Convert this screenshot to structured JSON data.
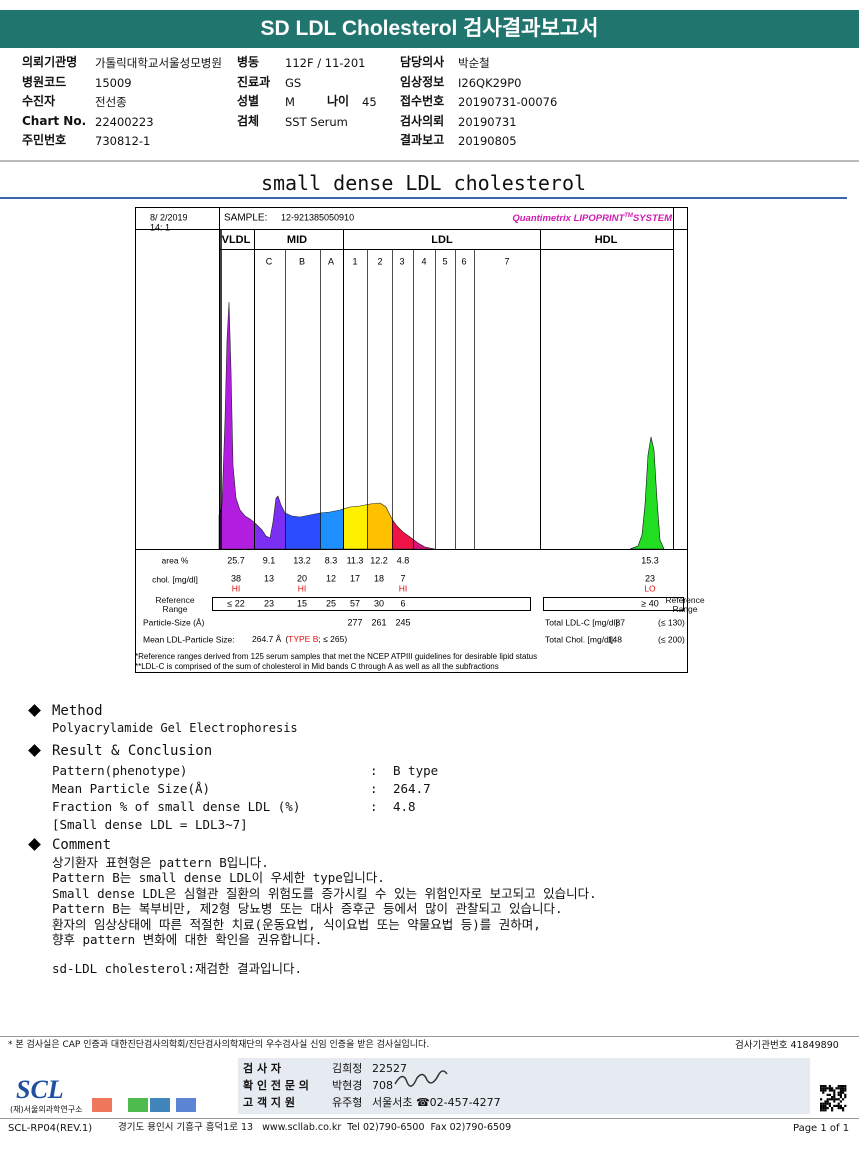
{
  "header": {
    "title": "SD LDL Cholesterol 검사결과보고서"
  },
  "patient_info": {
    "fields": [
      {
        "label": "의뢰기관명",
        "value": "가톨릭대학교서울성모병원"
      },
      {
        "label": "병원코드",
        "value": "15009"
      },
      {
        "label": "수진자",
        "value": "전선종"
      },
      {
        "label": "Chart No.",
        "value": "22400223"
      },
      {
        "label": "주민번호",
        "value": "730812-1"
      },
      {
        "label": "병동",
        "value": "112F / 11-201"
      },
      {
        "label": "진료과",
        "value": "GS"
      },
      {
        "label": "성별",
        "value": "M"
      },
      {
        "label": "나이",
        "value": "45"
      },
      {
        "label": "검체",
        "value": "SST Serum"
      },
      {
        "label": "담당의사",
        "value": "박순철"
      },
      {
        "label": "임상정보",
        "value": "I26QK29P0"
      },
      {
        "label": "접수번호",
        "value": "20190731-00076"
      },
      {
        "label": "검사의뢰",
        "value": "20190731"
      },
      {
        "label": "결과보고",
        "value": "20190805"
      }
    ]
  },
  "report_title": "small dense LDL cholesterol",
  "electrophoresis": {
    "date": "8/ 2/2019",
    "time": "14: 1",
    "sample_label": "SAMPLE:",
    "sample_id": "12-921385050910",
    "brand": "Quantimetrix LIPOPRINT",
    "brand_tm": "TM",
    "brand_suffix": "SYSTEM",
    "bands": [
      "VLDL",
      "MID",
      "LDL",
      "HDL"
    ],
    "subfractions": [
      "C",
      "B",
      "A",
      "1",
      "2",
      "3",
      "4",
      "5",
      "6",
      "7"
    ],
    "area_label": "area %",
    "area": [
      25.7,
      9.1,
      13.2,
      8.3,
      11.3,
      12.2,
      4.8
    ],
    "hdl_area": 15.3,
    "chol_label": "chol. [mg/dl]",
    "chol": [
      38,
      13,
      20,
      12,
      17,
      18,
      7
    ],
    "chol_flags": [
      "HI",
      null,
      "HI",
      null,
      null,
      null,
      "HI"
    ],
    "hdl_chol": 23,
    "hdl_flag": "LO",
    "ref_label": "Reference Range",
    "ref": [
      "≤ 22",
      23,
      15,
      25,
      57,
      30,
      6
    ],
    "hdl_ref": "≥ 40",
    "particle_size_label": "Particle-Size (Å)",
    "particle_size": [
      277,
      261,
      245
    ],
    "mean_label": "Mean LDL-Particle Size:",
    "mean_value": "264.7 Å",
    "mean_open": "(",
    "mean_type": "TYPE B",
    "mean_ref": "; ≤ 265)",
    "total_ldl_label": "Total LDL-C [mg/dl]:",
    "total_ldl": 87,
    "total_ldl_ref": "(≤ 130)",
    "total_chol_label": "Total Chol. [mg/dl]:",
    "total_chol": 148,
    "total_chol_ref": "(≤ 200)",
    "footnotes": [
      "*Reference ranges derived from 125 serum samples that met the NCEP ATPIII guidelines for desirable lipid status",
      "**LDL-C is comprised of the sum of cholesterol in Mid bands C through A as well as all the subfractions"
    ]
  },
  "method": {
    "heading": "Method",
    "text": "Polyacrylamide Gel Electrophoresis"
  },
  "result": {
    "heading": "Result & Conclusion",
    "separator": ":",
    "rows": [
      {
        "label": "Pattern(phenotype)",
        "value": "B type"
      },
      {
        "label": "Mean Particle Size(Å)",
        "value": 264.7
      },
      {
        "label": "Fraction % of small dense LDL (%)",
        "value": 4.8
      }
    ],
    "note": "[Small dense LDL = LDL3~7]"
  },
  "comment": {
    "heading": "Comment",
    "lines": [
      "상기환자 표현형은 pattern B입니다.",
      "Pattern B는 small dense LDL이 우세한 type입니다.",
      "Small dense LDL은 심혈관 질환의 위험도를 증가시킬 수 있는 위험인자로 보고되고 있습니다.",
      "Pattern B는 복부비만, 제2형 당뇨병 또는 대사 증후군 등에서 많이 관찰되고 있습니다.",
      "환자의 임상상태에 따른 적절한 치료(운동요법, 식이요법 또는 약물요법 등)를 권하며,",
      "향후 pattern 변화에 대한 확인을 권유합니다."
    ],
    "recheck_note": "sd-LDL cholesterol:재검한 결과입니다."
  },
  "footer": {
    "notice": "* 본 검사실은 CAP 인증과 대한진단검사의학회/진단검사의학재단의 우수검사실 신임 인증을 받은 검사실입니다.",
    "institution_no": "검사기관번호 41849890",
    "logo": "SCL",
    "logo_sub": "(재)서울의과학연구소",
    "signatures": [
      {
        "label": "검 사 자",
        "name": "김희정",
        "id": "22527"
      },
      {
        "label": "확 인 전 문 의",
        "name": "박현경",
        "id": "708"
      },
      {
        "label": "고 객 지 원",
        "name": "유주형",
        "id": "서울서초 ☎02-457-4277"
      }
    ],
    "form_code": "SCL-RP04(REV.1)",
    "address": "경기도 용인시 기흥구 흥덕1로 13   www.scllab.co.kr  Tel 02)790-6500  Fax 02)790-6509",
    "page": "Page 1 of 1"
  }
}
